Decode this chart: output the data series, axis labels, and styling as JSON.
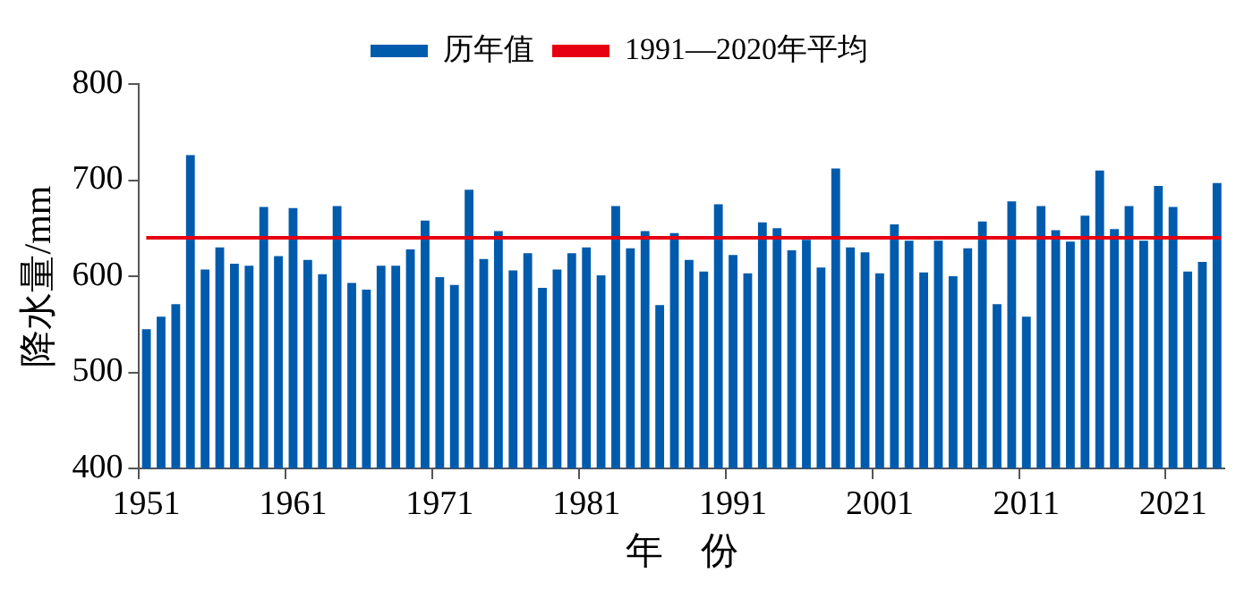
{
  "chart_data": {
    "type": "bar",
    "xlabel": "年　份",
    "ylabel": "降水量/mm",
    "categories": [
      "1951",
      null,
      null,
      null,
      null,
      null,
      null,
      null,
      null,
      null,
      "1961",
      null,
      null,
      null,
      null,
      null,
      null,
      null,
      null,
      null,
      "1971",
      null,
      null,
      null,
      null,
      null,
      null,
      null,
      null,
      null,
      "1981",
      null,
      null,
      null,
      null,
      null,
      null,
      null,
      null,
      null,
      "1991",
      null,
      null,
      null,
      null,
      null,
      null,
      null,
      null,
      null,
      "2001",
      null,
      null,
      null,
      null,
      null,
      null,
      null,
      null,
      null,
      "2011",
      null,
      null,
      null,
      null,
      null,
      null,
      null,
      null,
      null,
      "2021",
      null,
      null,
      null
    ],
    "series": [
      {
        "name": "历年值",
        "color": "#005bac",
        "values": [
          545,
          558,
          571,
          726,
          607,
          630,
          613,
          611,
          672,
          621,
          671,
          617,
          602,
          673,
          593,
          586,
          611,
          611,
          628,
          658,
          599,
          591,
          690,
          618,
          647,
          606,
          624,
          588,
          607,
          624,
          630,
          601,
          673,
          629,
          647,
          570,
          645,
          617,
          605,
          675,
          622,
          603,
          656,
          650,
          627,
          638,
          609,
          712,
          630,
          625,
          603,
          654,
          637,
          604,
          637,
          600,
          629,
          657,
          571,
          678,
          558,
          673,
          648,
          636,
          663,
          710,
          649,
          673,
          637,
          694,
          672,
          605,
          615,
          697
        ]
      }
    ],
    "ref_lines": [
      {
        "axis": "y",
        "value": 640,
        "label": "1991—2020年平均",
        "color": "#e60012"
      }
    ],
    "ylim": [
      400,
      800
    ],
    "yticks": [
      400,
      500,
      600,
      700,
      800
    ],
    "grid": false,
    "legend": "top"
  }
}
